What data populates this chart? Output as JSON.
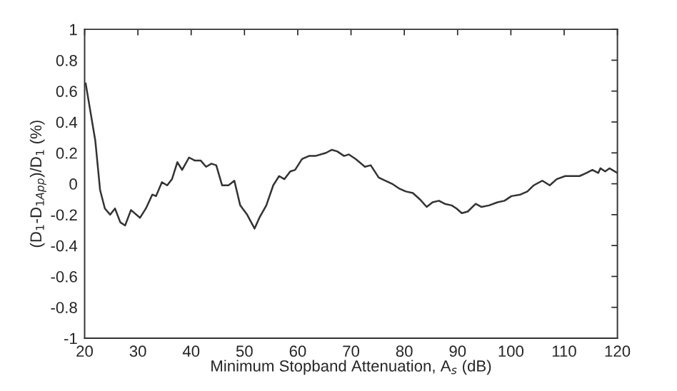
{
  "chart_data": {
    "type": "line",
    "xlabel": "Minimum Stopband Attenuation, A$_{s}$ (dB)",
    "ylabel": "(D$_{1}$-D$_{1App}$)/D$_{1}$ (%)",
    "xlim": [
      20,
      120
    ],
    "ylim": [
      -1,
      1
    ],
    "xticks": [
      20,
      30,
      40,
      50,
      60,
      70,
      80,
      90,
      100,
      110,
      120
    ],
    "yticks": [
      -1,
      -0.8,
      -0.6,
      -0.4,
      -0.2,
      0,
      0.2,
      0.4,
      0.6,
      0.8,
      1
    ],
    "grid": false,
    "marker": "none",
    "line_style": "solid",
    "series": [
      {
        "color": "#333333",
        "x": [
          20.2,
          22,
          22.9,
          23.8,
          24.8,
          25.7,
          26.7,
          27.6,
          28.7,
          30.4,
          31.5,
          32.7,
          33.4,
          34.5,
          35.5,
          36.4,
          37.4,
          38.3,
          39.6,
          40.7,
          41.8,
          42.8,
          43.8,
          44.7,
          45.8,
          47,
          48.1,
          49.2,
          50.5,
          51.9,
          52.8,
          54.1,
          55.4,
          56.5,
          57.5,
          58.6,
          59.5,
          60.8,
          62.1,
          63.3,
          65.3,
          66.4,
          67.4,
          68.7,
          69.6,
          70.9,
          72.6,
          73.7,
          75.2,
          76.4,
          77.7,
          79,
          80.3,
          81.6,
          82.9,
          84.2,
          85.3,
          86.5,
          87.6,
          88.9,
          89.8,
          90.8,
          91.9,
          93.4,
          94.5,
          95.9,
          97.5,
          98.8,
          100.1,
          101.8,
          103.1,
          104.3,
          105.9,
          107.3,
          108.6,
          110.2,
          111.5,
          112.9,
          114.2,
          115.3,
          116.4,
          116.8,
          117.7,
          118.5,
          120
        ],
        "values": [
          0.65,
          0.28,
          -0.04,
          -0.16,
          -0.2,
          -0.16,
          -0.25,
          -0.27,
          -0.17,
          -0.22,
          -0.16,
          -0.07,
          -0.08,
          0.01,
          -0.01,
          0.03,
          0.14,
          0.09,
          0.17,
          0.15,
          0.15,
          0.11,
          0.13,
          0.12,
          -0.01,
          -0.01,
          0.02,
          -0.14,
          -0.2,
          -0.29,
          -0.22,
          -0.14,
          -0.01,
          0.05,
          0.03,
          0.08,
          0.09,
          0.16,
          0.18,
          0.18,
          0.2,
          0.22,
          0.21,
          0.18,
          0.19,
          0.16,
          0.11,
          0.12,
          0.04,
          0.02,
          0.0,
          -0.03,
          -0.05,
          -0.06,
          -0.1,
          -0.15,
          -0.12,
          -0.11,
          -0.13,
          -0.14,
          -0.16,
          -0.19,
          -0.18,
          -0.13,
          -0.15,
          -0.14,
          -0.12,
          -0.11,
          -0.08,
          -0.07,
          -0.05,
          -0.01,
          0.02,
          -0.01,
          0.03,
          0.05,
          0.05,
          0.05,
          0.07,
          0.09,
          0.07,
          0.1,
          0.08,
          0.1,
          0.07
        ]
      }
    ]
  }
}
